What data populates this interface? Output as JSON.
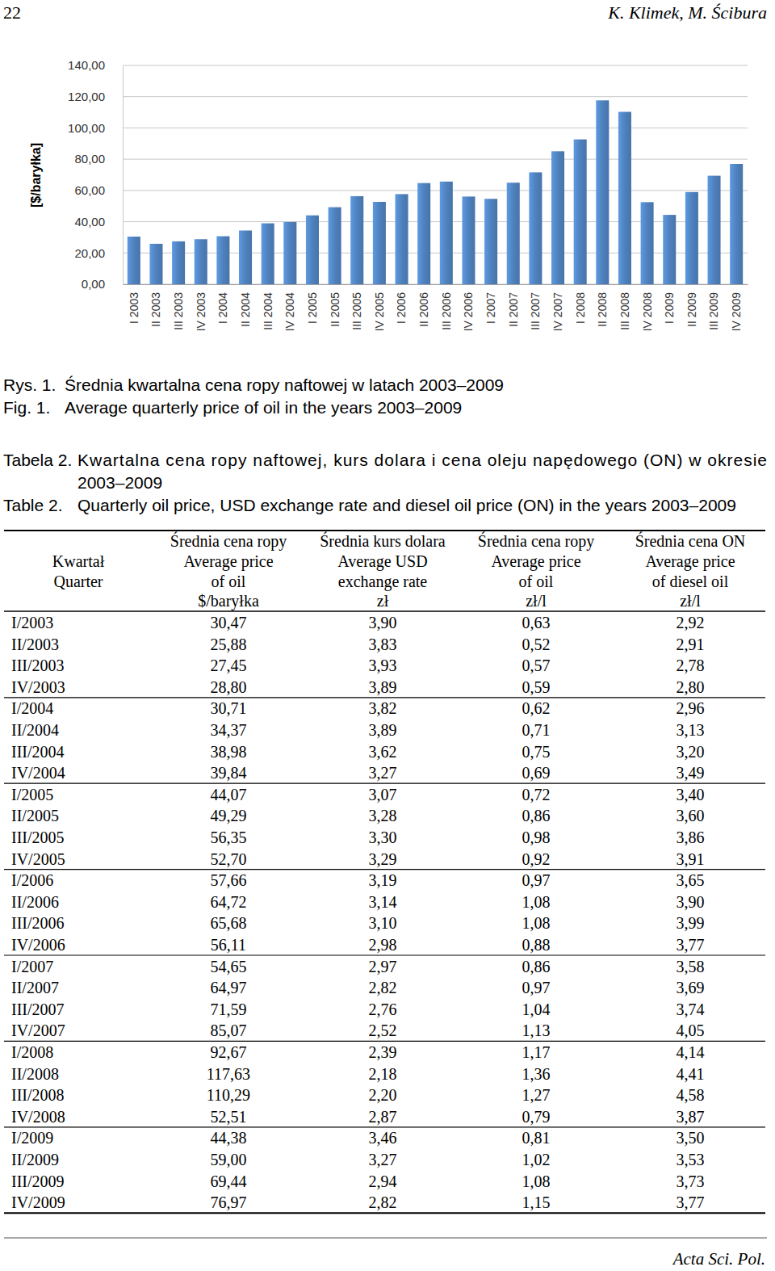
{
  "header": {
    "page_number": "22",
    "authors": "K. Klimek, M. Ścibura"
  },
  "chart_data": {
    "type": "bar",
    "y_label": "[$/baryłka]",
    "categories": [
      "I 2003",
      "II 2003",
      "III 2003",
      "IV 2003",
      "I 2004",
      "II 2004",
      "III 2004",
      "IV 2004",
      "I 2005",
      "II 2005",
      "III 2005",
      "IV 2005",
      "I 2006",
      "II 2006",
      "III 2006",
      "IV 2006",
      "I 2007",
      "II 2007",
      "III 2007",
      "IV 2007",
      "I 2008",
      "II 2008",
      "III 2008",
      "IV 2008",
      "I 2009",
      "II 2009",
      "III 2009",
      "IV 2009"
    ],
    "values": [
      30.47,
      25.88,
      27.45,
      28.8,
      30.71,
      34.37,
      38.98,
      39.84,
      44.07,
      49.29,
      56.35,
      52.7,
      57.66,
      64.72,
      65.68,
      56.11,
      54.65,
      64.97,
      71.59,
      85.07,
      92.67,
      117.63,
      110.29,
      52.51,
      44.38,
      59.0,
      69.44,
      76.97
    ],
    "color": "#4f81bd",
    "ylim": [
      0,
      140
    ],
    "yticks": [
      {
        "value": 0,
        "label": "0,00"
      },
      {
        "value": 20,
        "label": "20,00"
      },
      {
        "value": 40,
        "label": "40,00"
      },
      {
        "value": 60,
        "label": "60,00"
      },
      {
        "value": 80,
        "label": "80,00"
      },
      {
        "value": 100,
        "label": "100,00"
      },
      {
        "value": 120,
        "label": "120,00"
      },
      {
        "value": 140,
        "label": "140,00"
      }
    ],
    "grid": true
  },
  "figure_caption": [
    {
      "label": "Rys. 1.",
      "text": "Średnia kwartalna cena ropy naftowej w latach 2003–2009"
    },
    {
      "label": "Fig. 1.",
      "text": "Average quarterly price of oil in the years 2003–2009"
    }
  ],
  "table_caption": [
    {
      "label": "Tabela 2.",
      "lines": [
        "Kwartalna cena ropy naftowej, kurs dolara i cena oleju napędowego (ON) w okresie",
        "2003–2009"
      ]
    },
    {
      "label": "Table 2.",
      "lines": [
        "Quarterly oil price, USD exchange rate and diesel oil price (ON) in the years 2003–2009"
      ]
    }
  ],
  "table": {
    "header": [
      [
        "Kwartał",
        "Quarter"
      ],
      [
        "Średnia cena ropy",
        "Average price",
        "of oil",
        "$/baryłka"
      ],
      [
        "Średnia kurs dolara",
        "Average USD",
        "exchange rate",
        "zł"
      ],
      [
        "Średnia cena ropy",
        "Average price",
        "of oil",
        "zł/l"
      ],
      [
        "Średnia cena ON",
        "Average price",
        "of diesel oil",
        "zł/l"
      ]
    ],
    "rows": [
      [
        "I/2003",
        "30,47",
        "3,90",
        "0,63",
        "2,92"
      ],
      [
        "II/2003",
        "25,88",
        "3,83",
        "0,52",
        "2,91"
      ],
      [
        "III/2003",
        "27,45",
        "3,93",
        "0,57",
        "2,78"
      ],
      [
        "IV/2003",
        "28,80",
        "3,89",
        "0,59",
        "2,80"
      ],
      [
        "I/2004",
        "30,71",
        "3,82",
        "0,62",
        "2,96"
      ],
      [
        "II/2004",
        "34,37",
        "3,89",
        "0,71",
        "3,13"
      ],
      [
        "III/2004",
        "38,98",
        "3,62",
        "0,75",
        "3,20"
      ],
      [
        "IV/2004",
        "39,84",
        "3,27",
        "0,69",
        "3,49"
      ],
      [
        "I/2005",
        "44,07",
        "3,07",
        "0,72",
        "3,40"
      ],
      [
        "II/2005",
        "49,29",
        "3,28",
        "0,86",
        "3,60"
      ],
      [
        "III/2005",
        "56,35",
        "3,30",
        "0,98",
        "3,86"
      ],
      [
        "IV/2005",
        "52,70",
        "3,29",
        "0,92",
        "3,91"
      ],
      [
        "I/2006",
        "57,66",
        "3,19",
        "0,97",
        "3,65"
      ],
      [
        "II/2006",
        "64,72",
        "3,14",
        "1,08",
        "3,90"
      ],
      [
        "III/2006",
        "65,68",
        "3,10",
        "1,08",
        "3,99"
      ],
      [
        "IV/2006",
        "56,11",
        "2,98",
        "0,88",
        "3,77"
      ],
      [
        "I/2007",
        "54,65",
        "2,97",
        "0,86",
        "3,58"
      ],
      [
        "II/2007",
        "64,97",
        "2,82",
        "0,97",
        "3,69"
      ],
      [
        "III/2007",
        "71,59",
        "2,76",
        "1,04",
        "3,74"
      ],
      [
        "IV/2007",
        "85,07",
        "2,52",
        "1,13",
        "4,05"
      ],
      [
        "I/2008",
        "92,67",
        "2,39",
        "1,17",
        "4,14"
      ],
      [
        "II/2008",
        "117,63",
        "2,18",
        "1,36",
        "4,41"
      ],
      [
        "III/2008",
        "110,29",
        "2,20",
        "1,27",
        "4,58"
      ],
      [
        "IV/2008",
        "52,51",
        "2,87",
        "0,79",
        "3,87"
      ],
      [
        "I/2009",
        "44,38",
        "3,46",
        "0,81",
        "3,50"
      ],
      [
        "II/2009",
        "59,00",
        "3,27",
        "1,02",
        "3,53"
      ],
      [
        "III/2009",
        "69,44",
        "2,94",
        "1,08",
        "3,73"
      ],
      [
        "IV/2009",
        "76,97",
        "2,82",
        "1,15",
        "3,77"
      ]
    ]
  },
  "footer": {
    "journal": "Acta Sci. Pol."
  }
}
